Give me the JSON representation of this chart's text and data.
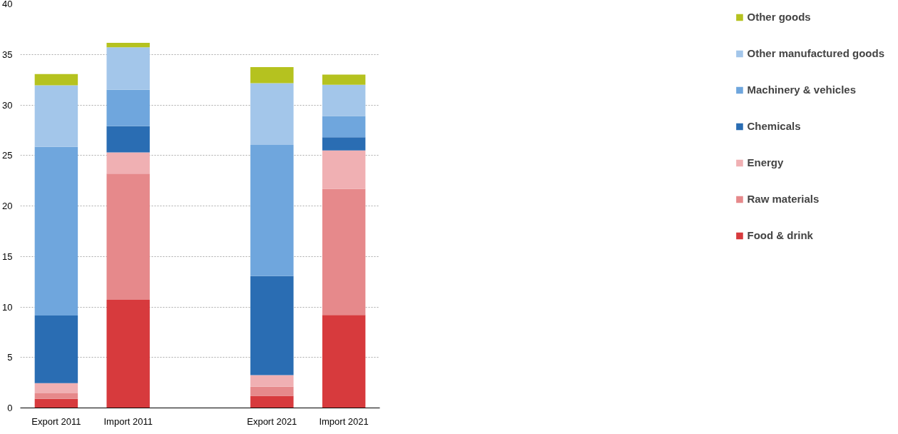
{
  "chart_data": {
    "type": "bar",
    "stacked": true,
    "categories": [
      "Export 2011",
      "Import 2011",
      null,
      "Export 2021",
      "Import 2021"
    ],
    "series": [
      {
        "name": "Food & drink",
        "color": "#d73a3d",
        "values": [
          0.9,
          10.7,
          null,
          1.2,
          9.2
        ]
      },
      {
        "name": "Raw materials",
        "color": "#e6898b",
        "values": [
          0.55,
          12.5,
          null,
          0.9,
          12.5
        ]
      },
      {
        "name": "Energy",
        "color": "#f0b0b3",
        "values": [
          1.0,
          2.1,
          null,
          1.15,
          3.8
        ]
      },
      {
        "name": "Chemicals",
        "color": "#2a6db3",
        "values": [
          6.7,
          2.6,
          null,
          9.8,
          1.3
        ]
      },
      {
        "name": "Machinery & vehicles",
        "color": "#6fa6dd",
        "values": [
          16.7,
          3.6,
          null,
          13.0,
          2.1
        ]
      },
      {
        "name": "Other manufactured goods",
        "color": "#a3c6ea",
        "values": [
          6.1,
          4.2,
          null,
          6.1,
          3.1
        ]
      },
      {
        "name": "Other goods",
        "color": "#b5c21f",
        "values": [
          1.1,
          0.45,
          null,
          1.6,
          1.0
        ]
      }
    ],
    "ylim": [
      0,
      40
    ],
    "yticks": [
      0,
      5,
      10,
      15,
      20,
      25,
      30,
      35,
      40
    ],
    "grid": "y",
    "legend": "right"
  }
}
